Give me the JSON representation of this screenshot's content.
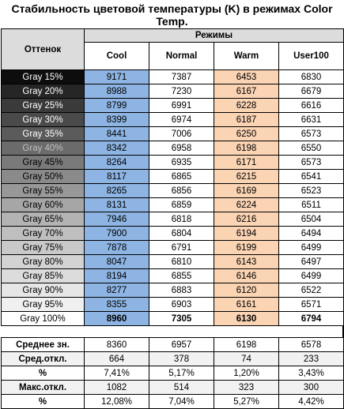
{
  "title_line1": "Стабильность цветовой температуры (K) в режимах Color",
  "title_line2": "Temp.",
  "headers": {
    "shade": "Оттенок",
    "modes": "Режимы",
    "cols": [
      "Cool",
      "Normal",
      "Warm",
      "User100"
    ]
  },
  "rows": [
    {
      "label": "Gray 15%",
      "bg": "#0d0d0d",
      "fg": "#ffffff",
      "v": [
        "9171",
        "7387",
        "6453",
        "6830"
      ]
    },
    {
      "label": "Gray 20%",
      "bg": "#262626",
      "fg": "#ffffff",
      "v": [
        "8988",
        "7230",
        "6167",
        "6679"
      ]
    },
    {
      "label": "Gray 25%",
      "bg": "#3a3a3a",
      "fg": "#ffffff",
      "v": [
        "8799",
        "6991",
        "6228",
        "6616"
      ]
    },
    {
      "label": "Gray 30%",
      "bg": "#4a4a4a",
      "fg": "#ffffff",
      "v": [
        "8399",
        "6974",
        "6187",
        "6631"
      ]
    },
    {
      "label": "Gray 35%",
      "bg": "#5b5b5b",
      "fg": "#ffffff",
      "v": [
        "8441",
        "7006",
        "6250",
        "6573"
      ]
    },
    {
      "label": "Gray 40%",
      "bg": "#6b6b6b",
      "fg": "#bfbfbf",
      "v": [
        "8342",
        "6958",
        "6198",
        "6550"
      ]
    },
    {
      "label": "Gray 45%",
      "bg": "#7a7a7a",
      "fg": "#000000",
      "v": [
        "8264",
        "6935",
        "6171",
        "6573"
      ]
    },
    {
      "label": "Gray 50%",
      "bg": "#8a8a8a",
      "fg": "#000000",
      "v": [
        "8117",
        "6865",
        "6215",
        "6541"
      ]
    },
    {
      "label": "Gray 55%",
      "bg": "#989898",
      "fg": "#000000",
      "v": [
        "8265",
        "6856",
        "6169",
        "6523"
      ]
    },
    {
      "label": "Gray 60%",
      "bg": "#a6a6a6",
      "fg": "#000000",
      "v": [
        "8131",
        "6859",
        "6224",
        "6511"
      ]
    },
    {
      "label": "Gray 65%",
      "bg": "#b3b3b3",
      "fg": "#000000",
      "v": [
        "7946",
        "6818",
        "6216",
        "6504"
      ]
    },
    {
      "label": "Gray 70%",
      "bg": "#bfbfbf",
      "fg": "#000000",
      "v": [
        "7900",
        "6804",
        "6194",
        "6494"
      ]
    },
    {
      "label": "Gray 75%",
      "bg": "#c9c9c9",
      "fg": "#000000",
      "v": [
        "7878",
        "6791",
        "6199",
        "6499"
      ]
    },
    {
      "label": "Gray 80%",
      "bg": "#d3d3d3",
      "fg": "#000000",
      "v": [
        "8047",
        "6810",
        "6143",
        "6497"
      ]
    },
    {
      "label": "Gray 85%",
      "bg": "#dcdcdc",
      "fg": "#000000",
      "v": [
        "8194",
        "6855",
        "6146",
        "6499"
      ]
    },
    {
      "label": "Gray 90%",
      "bg": "#e6e6e6",
      "fg": "#000000",
      "v": [
        "8277",
        "6883",
        "6120",
        "6522"
      ]
    },
    {
      "label": "Gray 95%",
      "bg": "#f0f0f0",
      "fg": "#000000",
      "v": [
        "8355",
        "6903",
        "6161",
        "6571"
      ]
    },
    {
      "label": "Gray 100%",
      "bg": "#ffffff",
      "fg": "#000000",
      "v": [
        "8960",
        "7305",
        "6130",
        "6794"
      ],
      "bold": true
    }
  ],
  "stats": [
    {
      "label": "Среднее зн.",
      "v": [
        "8360",
        "6957",
        "6198",
        "6578"
      ]
    },
    {
      "label": "Сред.откл.",
      "v": [
        "664",
        "378",
        "74",
        "233"
      ]
    },
    {
      "label": "%",
      "v": [
        "7,41%",
        "5,17%",
        "1,20%",
        "3,43%"
      ]
    },
    {
      "label": "Макс.откл.",
      "v": [
        "1082",
        "514",
        "323",
        "300"
      ]
    },
    {
      "label": "%",
      "v": [
        "12,08%",
        "7,04%",
        "5,27%",
        "4,42%"
      ]
    }
  ],
  "colors": {
    "cool": "#8db4e2",
    "warm": "#fbd4b4"
  }
}
